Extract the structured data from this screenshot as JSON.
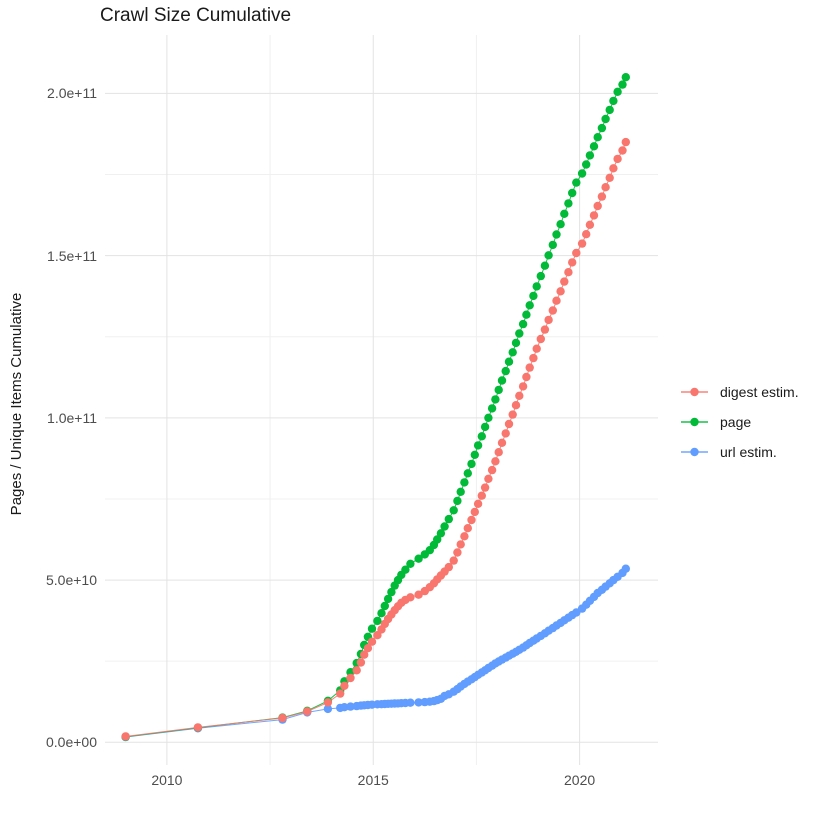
{
  "title": "Crawl Size Cumulative",
  "chart_data": {
    "type": "line",
    "title": "Crawl Size Cumulative",
    "xlabel": "",
    "ylabel": "Pages / Unique Items Cumulative",
    "y_unit": "billions (1e9)",
    "grid": "on",
    "legend_position": "right",
    "xlim": [
      2008.5,
      2021.9
    ],
    "ylim_e9": [
      -7,
      218
    ],
    "x_ticks": [
      {
        "value": 2010,
        "label": "2010"
      },
      {
        "value": 2015,
        "label": "2015"
      },
      {
        "value": 2020,
        "label": "2020"
      }
    ],
    "x_minor_ticks": [
      2012.5,
      2017.5
    ],
    "y_ticks": [
      {
        "value_e9": 0,
        "label": "0.0e+00"
      },
      {
        "value_e9": 50,
        "label": "5.0e+10"
      },
      {
        "value_e9": 100,
        "label": "1.0e+11"
      },
      {
        "value_e9": 150,
        "label": "1.5e+11"
      },
      {
        "value_e9": 200,
        "label": "2.0e+11"
      }
    ],
    "y_minor_ticks_e9": [
      25,
      75,
      125,
      175
    ],
    "series": [
      {
        "name": "digest estim.",
        "color": "#F8766D",
        "points_year_value_e9": [
          [
            2009.0,
            1.8
          ],
          [
            2010.75,
            4.6
          ],
          [
            2012.8,
            7.5
          ],
          [
            2013.4,
            9.5
          ],
          [
            2013.9,
            12.3
          ],
          [
            2014.2,
            15.0
          ],
          [
            2014.3,
            17.4
          ],
          [
            2014.45,
            19.8
          ],
          [
            2014.6,
            22.2
          ],
          [
            2014.7,
            24.6
          ],
          [
            2014.78,
            27.0
          ],
          [
            2014.87,
            29.0
          ],
          [
            2014.97,
            31.0
          ],
          [
            2015.1,
            33.0
          ],
          [
            2015.2,
            34.8
          ],
          [
            2015.28,
            36.5
          ],
          [
            2015.36,
            38.0
          ],
          [
            2015.44,
            39.4
          ],
          [
            2015.52,
            40.7
          ],
          [
            2015.6,
            41.9
          ],
          [
            2015.68,
            43.0
          ],
          [
            2015.78,
            43.9
          ],
          [
            2015.9,
            44.7
          ],
          [
            2016.1,
            45.5
          ],
          [
            2016.25,
            46.6
          ],
          [
            2016.37,
            47.8
          ],
          [
            2016.47,
            49.0
          ],
          [
            2016.55,
            50.2
          ],
          [
            2016.64,
            51.4
          ],
          [
            2016.73,
            52.6
          ],
          [
            2016.83,
            54.0
          ],
          [
            2016.95,
            56.0
          ],
          [
            2017.04,
            58.5
          ],
          [
            2017.12,
            61.0
          ],
          [
            2017.21,
            63.5
          ],
          [
            2017.29,
            66.0
          ],
          [
            2017.38,
            68.5
          ],
          [
            2017.46,
            71.0
          ],
          [
            2017.54,
            73.5
          ],
          [
            2017.63,
            76.0
          ],
          [
            2017.71,
            78.5
          ],
          [
            2017.79,
            81.2
          ],
          [
            2017.88,
            83.9
          ],
          [
            2017.96,
            86.6
          ],
          [
            2018.04,
            89.4
          ],
          [
            2018.12,
            92.3
          ],
          [
            2018.21,
            95.2
          ],
          [
            2018.29,
            98.1
          ],
          [
            2018.38,
            101.0
          ],
          [
            2018.46,
            103.9
          ],
          [
            2018.54,
            106.8
          ],
          [
            2018.63,
            109.7
          ],
          [
            2018.71,
            112.6
          ],
          [
            2018.79,
            115.5
          ],
          [
            2018.88,
            118.4
          ],
          [
            2018.96,
            121.3
          ],
          [
            2019.06,
            124.3
          ],
          [
            2019.16,
            127.2
          ],
          [
            2019.25,
            130.2
          ],
          [
            2019.35,
            133.1
          ],
          [
            2019.44,
            136.1
          ],
          [
            2019.54,
            139.0
          ],
          [
            2019.63,
            142.0
          ],
          [
            2019.73,
            144.9
          ],
          [
            2019.82,
            147.9
          ],
          [
            2019.92,
            150.8
          ],
          [
            2020.06,
            153.7
          ],
          [
            2020.16,
            156.6
          ],
          [
            2020.25,
            159.5
          ],
          [
            2020.35,
            162.4
          ],
          [
            2020.44,
            165.3
          ],
          [
            2020.54,
            168.2
          ],
          [
            2020.63,
            171.1
          ],
          [
            2020.73,
            174.0
          ],
          [
            2020.82,
            176.9
          ],
          [
            2020.92,
            179.8
          ],
          [
            2021.04,
            182.4
          ],
          [
            2021.12,
            185.0
          ]
        ]
      },
      {
        "name": "page",
        "color": "#00BA38",
        "points_year_value_e9": [
          [
            2009.0,
            1.7
          ],
          [
            2010.75,
            4.5
          ],
          [
            2012.8,
            7.6
          ],
          [
            2013.4,
            9.7
          ],
          [
            2013.9,
            12.8
          ],
          [
            2014.2,
            16.0
          ],
          [
            2014.3,
            18.8
          ],
          [
            2014.45,
            21.6
          ],
          [
            2014.6,
            24.4
          ],
          [
            2014.7,
            27.2
          ],
          [
            2014.78,
            30.0
          ],
          [
            2014.87,
            32.5
          ],
          [
            2014.97,
            35.0
          ],
          [
            2015.1,
            37.4
          ],
          [
            2015.2,
            39.8
          ],
          [
            2015.28,
            42.0
          ],
          [
            2015.36,
            44.2
          ],
          [
            2015.44,
            46.3
          ],
          [
            2015.52,
            48.3
          ],
          [
            2015.6,
            50.0
          ],
          [
            2015.68,
            51.6
          ],
          [
            2015.78,
            53.2
          ],
          [
            2015.9,
            55.0
          ],
          [
            2016.1,
            56.6
          ],
          [
            2016.25,
            57.9
          ],
          [
            2016.37,
            59.2
          ],
          [
            2016.47,
            60.8
          ],
          [
            2016.55,
            62.5
          ],
          [
            2016.64,
            64.4
          ],
          [
            2016.73,
            66.5
          ],
          [
            2016.83,
            68.8
          ],
          [
            2016.95,
            71.5
          ],
          [
            2017.04,
            74.4
          ],
          [
            2017.12,
            77.2
          ],
          [
            2017.21,
            80.1
          ],
          [
            2017.29,
            82.9
          ],
          [
            2017.38,
            85.8
          ],
          [
            2017.46,
            88.6
          ],
          [
            2017.54,
            91.5
          ],
          [
            2017.63,
            94.3
          ],
          [
            2017.71,
            97.2
          ],
          [
            2017.79,
            100.0
          ],
          [
            2017.88,
            102.9
          ],
          [
            2017.96,
            105.7
          ],
          [
            2018.04,
            108.6
          ],
          [
            2018.12,
            111.5
          ],
          [
            2018.21,
            114.4
          ],
          [
            2018.29,
            117.3
          ],
          [
            2018.38,
            120.2
          ],
          [
            2018.46,
            123.1
          ],
          [
            2018.54,
            126.0
          ],
          [
            2018.63,
            128.9
          ],
          [
            2018.71,
            131.8
          ],
          [
            2018.79,
            134.7
          ],
          [
            2018.88,
            137.6
          ],
          [
            2018.96,
            140.5
          ],
          [
            2019.06,
            143.7
          ],
          [
            2019.16,
            146.9
          ],
          [
            2019.25,
            150.1
          ],
          [
            2019.35,
            153.3
          ],
          [
            2019.44,
            156.5
          ],
          [
            2019.54,
            159.7
          ],
          [
            2019.63,
            162.9
          ],
          [
            2019.73,
            166.1
          ],
          [
            2019.82,
            169.3
          ],
          [
            2019.92,
            172.5
          ],
          [
            2020.06,
            175.3
          ],
          [
            2020.16,
            178.1
          ],
          [
            2020.25,
            180.9
          ],
          [
            2020.35,
            183.7
          ],
          [
            2020.44,
            186.5
          ],
          [
            2020.54,
            189.3
          ],
          [
            2020.63,
            192.1
          ],
          [
            2020.73,
            194.9
          ],
          [
            2020.82,
            197.7
          ],
          [
            2020.92,
            200.5
          ],
          [
            2021.04,
            202.7
          ],
          [
            2021.12,
            205.0
          ]
        ]
      },
      {
        "name": "url estim.",
        "color": "#619CFF",
        "points_year_value_e9": [
          [
            2009.0,
            1.6
          ],
          [
            2010.75,
            4.3
          ],
          [
            2012.8,
            7.0
          ],
          [
            2013.4,
            9.2
          ],
          [
            2013.9,
            10.3
          ],
          [
            2014.2,
            10.6
          ],
          [
            2014.3,
            10.8
          ],
          [
            2014.45,
            11.0
          ],
          [
            2014.6,
            11.15
          ],
          [
            2014.7,
            11.3
          ],
          [
            2014.78,
            11.4
          ],
          [
            2014.87,
            11.5
          ],
          [
            2014.97,
            11.6
          ],
          [
            2015.1,
            11.7
          ],
          [
            2015.2,
            11.75
          ],
          [
            2015.28,
            11.8
          ],
          [
            2015.36,
            11.85
          ],
          [
            2015.44,
            11.9
          ],
          [
            2015.52,
            11.95
          ],
          [
            2015.6,
            12.0
          ],
          [
            2015.68,
            12.05
          ],
          [
            2015.78,
            12.1
          ],
          [
            2015.9,
            12.2
          ],
          [
            2016.1,
            12.3
          ],
          [
            2016.25,
            12.4
          ],
          [
            2016.37,
            12.5
          ],
          [
            2016.47,
            12.7
          ],
          [
            2016.55,
            13.0
          ],
          [
            2016.64,
            13.4
          ],
          [
            2016.73,
            14.3
          ],
          [
            2016.83,
            14.8
          ],
          [
            2016.95,
            15.6
          ],
          [
            2017.04,
            16.4
          ],
          [
            2017.12,
            17.2
          ],
          [
            2017.21,
            18.0
          ],
          [
            2017.29,
            18.7
          ],
          [
            2017.38,
            19.4
          ],
          [
            2017.46,
            20.1
          ],
          [
            2017.54,
            20.8
          ],
          [
            2017.63,
            21.5
          ],
          [
            2017.71,
            22.2
          ],
          [
            2017.79,
            22.9
          ],
          [
            2017.88,
            23.6
          ],
          [
            2017.96,
            24.3
          ],
          [
            2018.04,
            24.9
          ],
          [
            2018.12,
            25.5
          ],
          [
            2018.21,
            26.1
          ],
          [
            2018.29,
            26.7
          ],
          [
            2018.38,
            27.3
          ],
          [
            2018.46,
            27.9
          ],
          [
            2018.54,
            28.5
          ],
          [
            2018.63,
            29.2
          ],
          [
            2018.71,
            29.9
          ],
          [
            2018.79,
            30.6
          ],
          [
            2018.88,
            31.3
          ],
          [
            2018.96,
            32.0
          ],
          [
            2019.06,
            32.8
          ],
          [
            2019.16,
            33.6
          ],
          [
            2019.25,
            34.4
          ],
          [
            2019.35,
            35.2
          ],
          [
            2019.44,
            36.0
          ],
          [
            2019.54,
            36.8
          ],
          [
            2019.63,
            37.6
          ],
          [
            2019.73,
            38.4
          ],
          [
            2019.82,
            39.2
          ],
          [
            2019.92,
            40.0
          ],
          [
            2020.06,
            41.2
          ],
          [
            2020.16,
            42.4
          ],
          [
            2020.25,
            43.6
          ],
          [
            2020.35,
            44.8
          ],
          [
            2020.44,
            46.0
          ],
          [
            2020.54,
            47.0
          ],
          [
            2020.63,
            48.0
          ],
          [
            2020.73,
            49.0
          ],
          [
            2020.82,
            50.0
          ],
          [
            2020.92,
            51.0
          ],
          [
            2021.04,
            52.2
          ],
          [
            2021.12,
            53.5
          ]
        ]
      }
    ]
  },
  "legend": {
    "items": [
      {
        "label": "digest estim.",
        "color": "#F8766D"
      },
      {
        "label": "page",
        "color": "#00BA38"
      },
      {
        "label": "url estim.",
        "color": "#619CFF"
      }
    ]
  },
  "style": {
    "grid_major_color": "#E3E3E3",
    "grid_minor_color": "#F0F0F0",
    "tick_label_color": "#4d4d4d",
    "text_color": "#1a1a1a",
    "background": "#ffffff"
  }
}
